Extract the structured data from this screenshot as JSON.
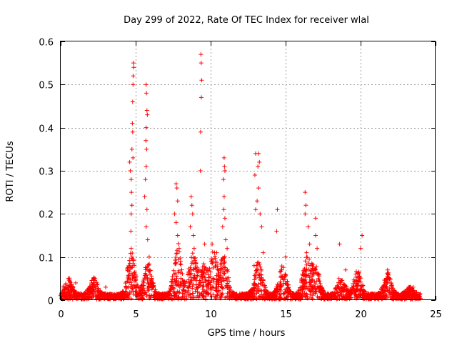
{
  "chart_data": {
    "type": "scatter",
    "title": "Day 299 of 2022, Rate Of TEC Index for receiver wlal",
    "xlabel": "GPS time / hours",
    "ylabel": "ROTI / TECUs",
    "xlim": [
      0,
      25
    ],
    "ylim": [
      0,
      0.6
    ],
    "x_ticks": [
      "0",
      "5",
      "10",
      "15",
      "20",
      "25"
    ],
    "y_ticks": [
      "0",
      "0.1",
      "0.2",
      "0.3",
      "0.4",
      "0.5",
      "0.6"
    ],
    "grid": true,
    "marker": "+",
    "color": "#ff0000",
    "series": [
      {
        "name": "ROTI",
        "points": [
          [
            4.6,
            0.32
          ],
          [
            4.65,
            0.3
          ],
          [
            4.7,
            0.28
          ],
          [
            4.72,
            0.25
          ],
          [
            4.75,
            0.22
          ],
          [
            4.7,
            0.2
          ],
          [
            4.68,
            0.16
          ],
          [
            4.8,
            0.46
          ],
          [
            4.82,
            0.5
          ],
          [
            4.85,
            0.55
          ],
          [
            4.87,
            0.54
          ],
          [
            4.83,
            0.52
          ],
          [
            4.78,
            0.41
          ],
          [
            4.8,
            0.39
          ],
          [
            4.75,
            0.35
          ],
          [
            4.82,
            0.33
          ],
          [
            4.7,
            0.12
          ],
          [
            4.75,
            0.1
          ],
          [
            4.6,
            0.08
          ],
          [
            5.7,
            0.5
          ],
          [
            5.72,
            0.48
          ],
          [
            5.75,
            0.44
          ],
          [
            5.78,
            0.43
          ],
          [
            5.7,
            0.4
          ],
          [
            5.68,
            0.37
          ],
          [
            5.73,
            0.35
          ],
          [
            5.7,
            0.31
          ],
          [
            5.65,
            0.28
          ],
          [
            5.6,
            0.24
          ],
          [
            5.75,
            0.21
          ],
          [
            5.7,
            0.17
          ],
          [
            5.8,
            0.14
          ],
          [
            5.9,
            0.1
          ],
          [
            7.7,
            0.27
          ],
          [
            7.75,
            0.26
          ],
          [
            7.8,
            0.23
          ],
          [
            7.6,
            0.2
          ],
          [
            7.7,
            0.18
          ],
          [
            7.8,
            0.15
          ],
          [
            7.9,
            0.12
          ],
          [
            8.7,
            0.24
          ],
          [
            8.75,
            0.22
          ],
          [
            8.8,
            0.2
          ],
          [
            8.65,
            0.17
          ],
          [
            8.85,
            0.15
          ],
          [
            8.9,
            0.12
          ],
          [
            9.35,
            0.57
          ],
          [
            9.37,
            0.55
          ],
          [
            9.4,
            0.51
          ],
          [
            9.38,
            0.47
          ],
          [
            9.33,
            0.39
          ],
          [
            9.32,
            0.3
          ],
          [
            9.6,
            0.13
          ],
          [
            10.1,
            0.13
          ],
          [
            10.4,
            0.11
          ],
          [
            10.9,
            0.33
          ],
          [
            10.92,
            0.31
          ],
          [
            10.95,
            0.3
          ],
          [
            10.85,
            0.28
          ],
          [
            10.9,
            0.24
          ],
          [
            10.88,
            0.21
          ],
          [
            10.95,
            0.19
          ],
          [
            10.8,
            0.17
          ],
          [
            11.0,
            0.14
          ],
          [
            11.1,
            0.12
          ],
          [
            13.0,
            0.34
          ],
          [
            13.2,
            0.34
          ],
          [
            13.25,
            0.32
          ],
          [
            13.15,
            0.31
          ],
          [
            12.95,
            0.29
          ],
          [
            13.2,
            0.26
          ],
          [
            13.1,
            0.23
          ],
          [
            13.0,
            0.21
          ],
          [
            13.3,
            0.2
          ],
          [
            13.4,
            0.17
          ],
          [
            13.5,
            0.11
          ],
          [
            12.9,
            0.08
          ],
          [
            14.45,
            0.21
          ],
          [
            14.4,
            0.16
          ],
          [
            15.0,
            0.1
          ],
          [
            16.3,
            0.25
          ],
          [
            16.35,
            0.22
          ],
          [
            16.3,
            0.2
          ],
          [
            16.5,
            0.17
          ],
          [
            16.6,
            0.13
          ],
          [
            16.4,
            0.11
          ],
          [
            17.0,
            0.19
          ],
          [
            17.0,
            0.15
          ],
          [
            17.1,
            0.12
          ],
          [
            18.6,
            0.13
          ],
          [
            19.0,
            0.07
          ],
          [
            20.1,
            0.15
          ],
          [
            20.0,
            0.12
          ],
          [
            21.8,
            0.07
          ],
          [
            2.2,
            0.05
          ],
          [
            0.5,
            0.05
          ],
          [
            1.0,
            0.04
          ],
          [
            3.0,
            0.03
          ],
          [
            23.5,
            0.03
          ]
        ]
      }
    ]
  }
}
